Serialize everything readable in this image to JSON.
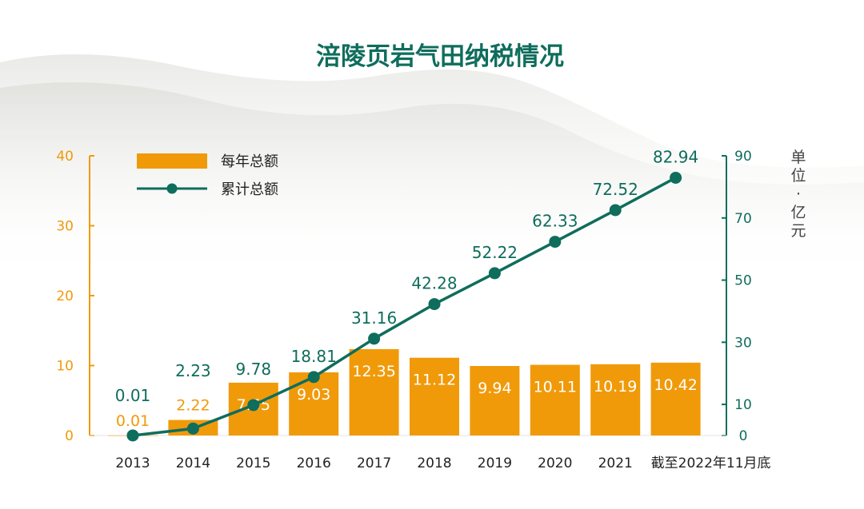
{
  "chart_data": {
    "type": "bar",
    "title": "涪陵页岩气田纳税情况",
    "categories": [
      "2013",
      "2014",
      "2015",
      "2016",
      "2017",
      "2018",
      "2019",
      "2020",
      "2021",
      "截至2022年11月底"
    ],
    "series": [
      {
        "name": "每年总额",
        "type": "bar",
        "axis": "left",
        "values": [
          0.01,
          2.22,
          7.55,
          9.03,
          12.35,
          11.12,
          9.94,
          10.11,
          10.19,
          10.42
        ],
        "labels": [
          "0.01",
          "2.22",
          "7.55",
          "9.03",
          "12.35",
          "11.12",
          "9.94",
          "10.11",
          "10.19",
          "10.42"
        ]
      },
      {
        "name": "累计总额",
        "type": "line",
        "axis": "right",
        "values": [
          0.01,
          2.23,
          9.78,
          18.81,
          31.16,
          42.28,
          52.22,
          62.33,
          72.52,
          82.94
        ],
        "labels": [
          "0.01",
          "2.23",
          "9.78",
          "18.81",
          "31.16",
          "42.28",
          "52.22",
          "62.33",
          "72.52",
          "82.94"
        ]
      }
    ],
    "y_left": {
      "range": [
        0,
        40
      ],
      "ticks": [
        "0",
        "10",
        "20",
        "30",
        "40"
      ]
    },
    "y_right": {
      "range": [
        0,
        90
      ],
      "ticks": [
        "0",
        "10",
        "30",
        "50",
        "70",
        "90"
      ]
    },
    "unit": "单位：亿元",
    "legend_position": "top-left",
    "grid": false,
    "colors": {
      "bar": "#F09A0A",
      "line": "#0F6D5C",
      "title": "#0F6D5C",
      "left_axis": "#F09A0A",
      "right_axis": "#0F6D5C"
    }
  }
}
